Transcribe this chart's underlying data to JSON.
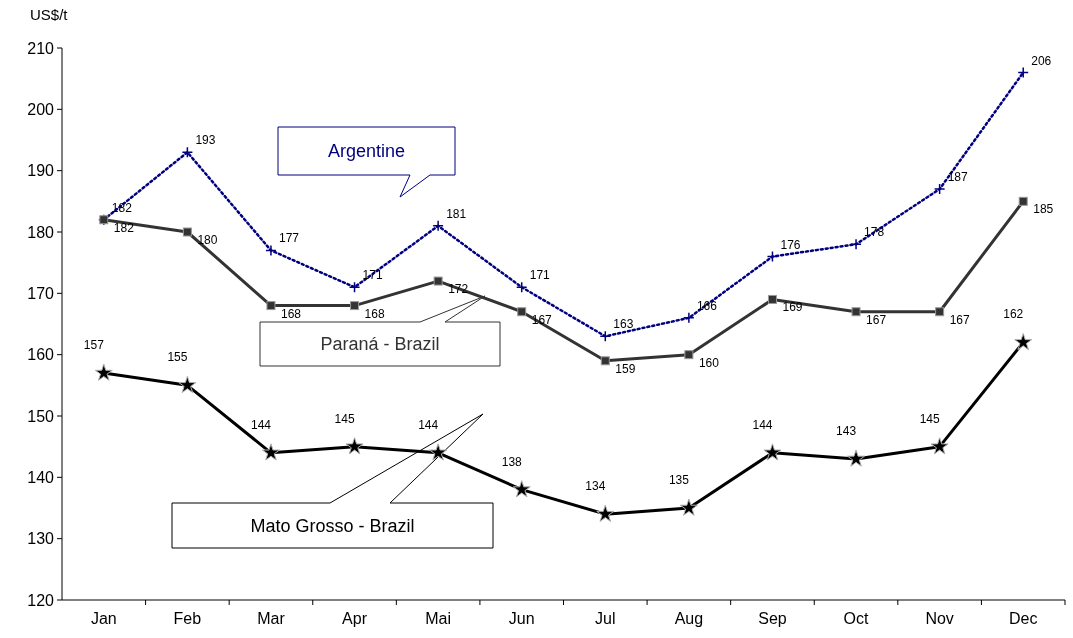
{
  "chart_data": {
    "type": "line",
    "ylabel": "US$/t",
    "categories": [
      "Jan",
      "Feb",
      "Mar",
      "Apr",
      "Mai",
      "Jun",
      "Jul",
      "Aug",
      "Sep",
      "Oct",
      "Nov",
      "Dec"
    ],
    "ylim": [
      120,
      210
    ],
    "yticks": [
      120,
      130,
      140,
      150,
      160,
      170,
      180,
      190,
      200,
      210
    ],
    "grid": false,
    "legend": false,
    "data_labels": true,
    "series": [
      {
        "name": "Argentine",
        "color": "#000080",
        "marker": "cross",
        "line_style": "dotted",
        "values": [
          182,
          193,
          177,
          171,
          181,
          171,
          163,
          166,
          176,
          178,
          187,
          206
        ]
      },
      {
        "name": "Paraná - Brazil",
        "color": "#333333",
        "marker": "square",
        "line_style": "solid",
        "values": [
          182,
          180,
          168,
          168,
          172,
          167,
          159,
          160,
          169,
          167,
          167,
          185
        ]
      },
      {
        "name": "Mato Grosso - Brazil",
        "color": "#000000",
        "marker": "star",
        "line_style": "solid",
        "values": [
          157,
          155,
          144,
          145,
          144,
          138,
          134,
          135,
          144,
          143,
          145,
          162
        ]
      }
    ]
  }
}
